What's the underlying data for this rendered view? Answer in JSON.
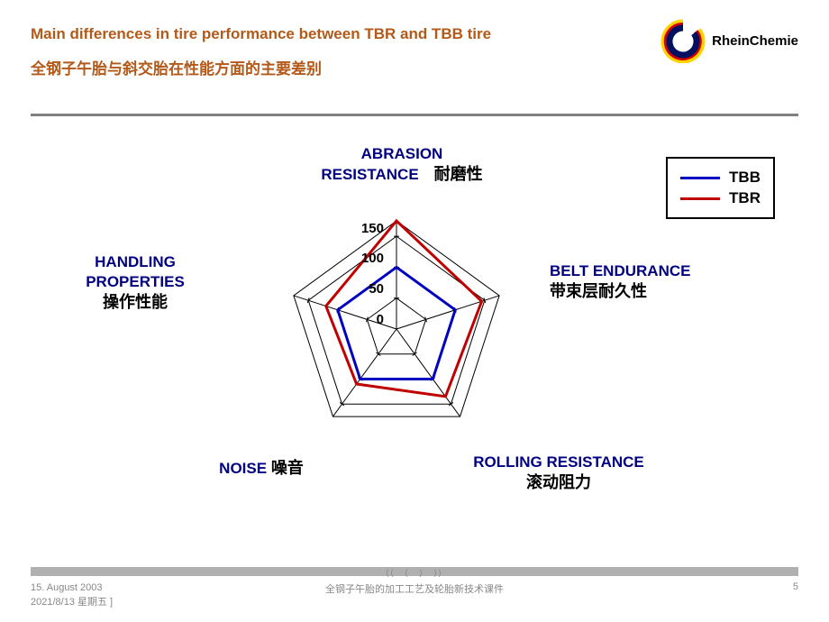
{
  "header": {
    "title_en": "Main differences in tire performance between TBR and TBB tire",
    "title_zh": "全钢子午胎与斜交胎在性能方面的主要差别",
    "logo_text": "RheinChemie"
  },
  "chart": {
    "type": "radar",
    "axes": [
      {
        "label_en": "ABRASION RESISTANCE",
        "label_zh": "耐磨性",
        "angle_deg": 90
      },
      {
        "label_en": "BELT ENDURANCE",
        "label_zh": "带束层耐久性",
        "angle_deg": 18
      },
      {
        "label_en": "ROLLING RESISTANCE",
        "label_zh": "滚动阻力",
        "angle_deg": -54
      },
      {
        "label_en": "NOISE",
        "label_zh": "噪音",
        "angle_deg": -126
      },
      {
        "label_en": "HANDLING PROPERTIES",
        "label_zh": "操作性能",
        "angle_deg": 162
      }
    ],
    "scale": {
      "min": 0,
      "max": 175,
      "ticks": [
        0,
        50,
        100,
        150
      ],
      "label_ticks": [
        0,
        50,
        100,
        150
      ]
    },
    "series": [
      {
        "name": "TBB",
        "color": "#0000c0",
        "values": [
          100,
          100,
          100,
          100,
          100
        ]
      },
      {
        "name": "TBR",
        "color": "#c00000",
        "values": [
          175,
          145,
          135,
          110,
          120
        ]
      }
    ],
    "line_width": 3,
    "tick_len": 6,
    "grid_color": "#000000",
    "axis_color": "#000000",
    "background": "#ffffff",
    "label_color_en": "#000080",
    "label_fontsize": 17
  },
  "legend": {
    "items": [
      {
        "label": "TBB",
        "color": "#0000c0"
      },
      {
        "label": "TBR",
        "color": "#c00000"
      }
    ]
  },
  "footer": {
    "date": "15. August 2003",
    "date2": "2021/8/13 星期五 ]",
    "center": "全钢子午胎的加工工艺及轮胎新技术课件",
    "page": "5",
    "nav": "((　(　)　))"
  }
}
